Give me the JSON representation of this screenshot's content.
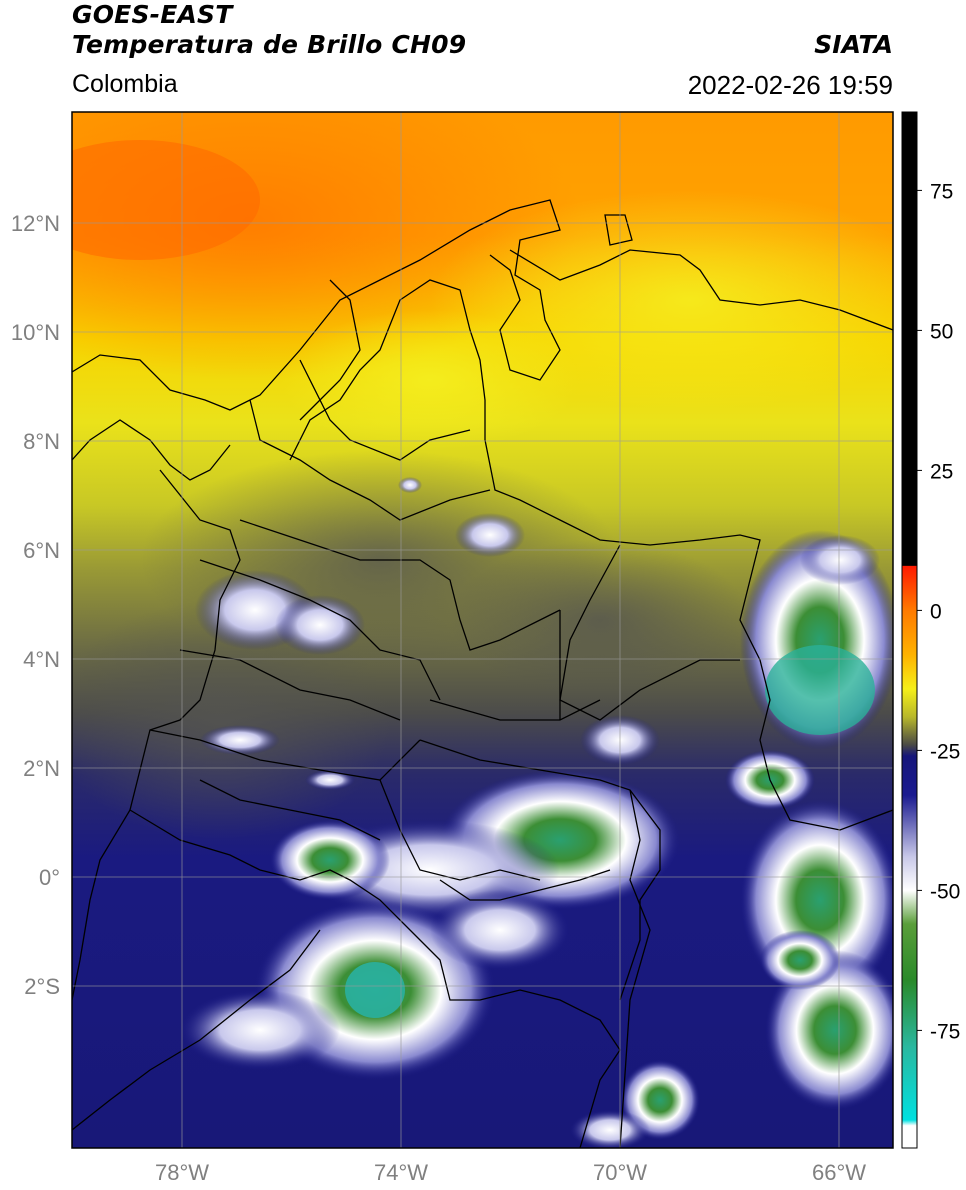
{
  "header": {
    "satellite": "GOES-EAST",
    "product": "Temperatura de Brillo CH09",
    "brand": "SIATA",
    "region": "Colombia",
    "datetime": "2022-02-26 19:59"
  },
  "axes": {
    "lat_labels": [
      {
        "value": 12,
        "label": "12°N"
      },
      {
        "value": 10,
        "label": "10°N"
      },
      {
        "value": 8,
        "label": "8°N"
      },
      {
        "value": 6,
        "label": "6°N"
      },
      {
        "value": 4,
        "label": "4°N"
      },
      {
        "value": 2,
        "label": "2°N"
      },
      {
        "value": 0,
        "label": "0°"
      },
      {
        "value": -2,
        "label": "2°S"
      }
    ],
    "lon_labels": [
      {
        "value": -78,
        "label": "78°W"
      },
      {
        "value": -74,
        "label": "74°W"
      },
      {
        "value": -70,
        "label": "70°W"
      },
      {
        "value": -66,
        "label": "66°W"
      }
    ],
    "lon_range": [
      -80,
      -65
    ],
    "lat_range": [
      -5,
      14
    ],
    "grid": true
  },
  "colorbar": {
    "unit_hint": "°C",
    "range": [
      -96,
      89
    ],
    "ticks": [
      {
        "value": 75,
        "label": "75"
      },
      {
        "value": 50,
        "label": "50"
      },
      {
        "value": 25,
        "label": "25"
      },
      {
        "value": 0,
        "label": "0"
      },
      {
        "value": -25,
        "label": "-25"
      },
      {
        "value": -50,
        "label": "-50"
      },
      {
        "value": -75,
        "label": "-75"
      }
    ],
    "stops": [
      {
        "value": 89,
        "color": "#000000"
      },
      {
        "value": 8,
        "color": "#000000"
      },
      {
        "value": 7.9,
        "color": "#ff1a00"
      },
      {
        "value": 0,
        "color": "#ff7a00"
      },
      {
        "value": -8,
        "color": "#ffb300"
      },
      {
        "value": -14,
        "color": "#f5ef1a"
      },
      {
        "value": -19,
        "color": "#b8b82a"
      },
      {
        "value": -24,
        "color": "#4a4a45"
      },
      {
        "value": -26,
        "color": "#16167a"
      },
      {
        "value": -33,
        "color": "#1a1a90"
      },
      {
        "value": -44,
        "color": "#c8c8e8"
      },
      {
        "value": -50,
        "color": "#ffffff"
      },
      {
        "value": -56,
        "color": "#5a9e3a"
      },
      {
        "value": -66,
        "color": "#2a8a2a"
      },
      {
        "value": -78,
        "color": "#2ab8a0"
      },
      {
        "value": -91,
        "color": "#00e0e0"
      },
      {
        "value": -92,
        "color": "#ffffff"
      },
      {
        "value": -96,
        "color": "#ffffff"
      }
    ]
  }
}
